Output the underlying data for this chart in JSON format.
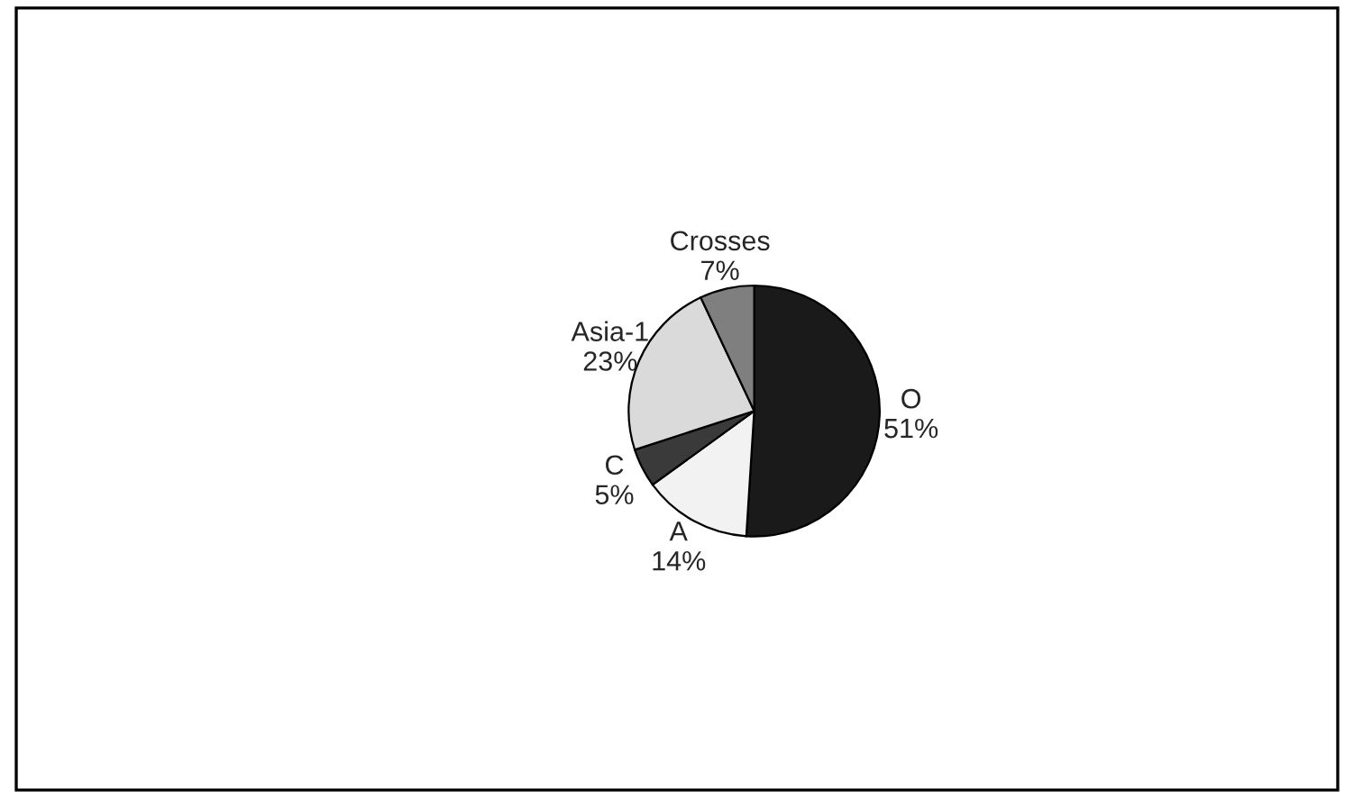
{
  "chart_data": {
    "type": "pie",
    "categories": [
      "O",
      "A",
      "C",
      "Asia-1",
      "Crosses"
    ],
    "values": [
      51,
      14,
      5,
      23,
      7
    ],
    "value_labels": [
      "51%",
      "14%",
      "5%",
      "23%",
      "7%"
    ],
    "colors": [
      "#1a1a1a",
      "#f2f2f2",
      "#3a3a3a",
      "#dadada",
      "#7f7f7f"
    ],
    "legend": false
  }
}
